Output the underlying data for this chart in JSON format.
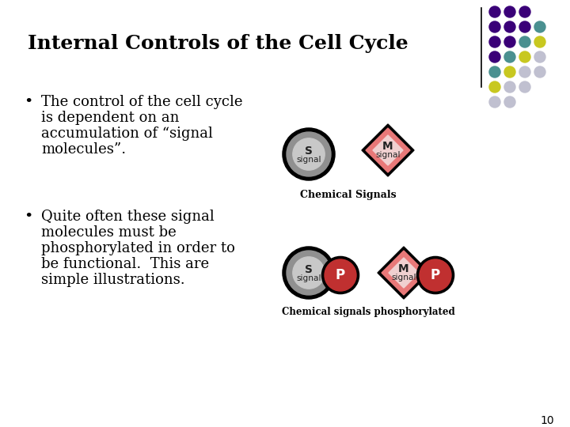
{
  "title": "Internal Controls of the Cell Cycle",
  "bg_color": "#ffffff",
  "title_color": "#000000",
  "title_fontsize": 18,
  "title_bold": true,
  "bullet1_line1": "The control of the cell cycle",
  "bullet1_line2": "is dependent on an",
  "bullet1_line3": "accumulation of “signal",
  "bullet1_line4": "molecules”.",
  "bullet2_line1": "Quite often these signal",
  "bullet2_line2": "molecules must be",
  "bullet2_line3": "phosphorylated in order to",
  "bullet2_line4": "be functional.  This are",
  "bullet2_line5": "simple illustrations.",
  "bullet_fontsize": 13,
  "label_chemical_signals": "Chemical Signals",
  "label_phosphorylated": "Chemical signals phosphorylated",
  "page_number": "10",
  "dot_colors": {
    "purple": "#3a0078",
    "teal": "#4a9090",
    "yellow": "#c8c820",
    "light": "#c0c0d0"
  },
  "dot_grid": [
    [
      "purple",
      "purple",
      "purple"
    ],
    [
      "purple",
      "purple",
      "purple",
      "teal"
    ],
    [
      "purple",
      "purple",
      "teal",
      "yellow"
    ],
    [
      "purple",
      "teal",
      "yellow",
      "light"
    ],
    [
      "teal",
      "yellow",
      "light",
      "light"
    ],
    [
      "yellow",
      "light",
      "light"
    ],
    [
      "light",
      "light"
    ]
  ],
  "vertical_line_x": 0.845,
  "s_circle_color": "#909090",
  "s_inner_color": "#c8c8c8",
  "m_diamond_color": "#e87878",
  "m_inner_color": "#f0d0d0",
  "p_circle_color": "#c03030",
  "shape_border_color": "#000000"
}
